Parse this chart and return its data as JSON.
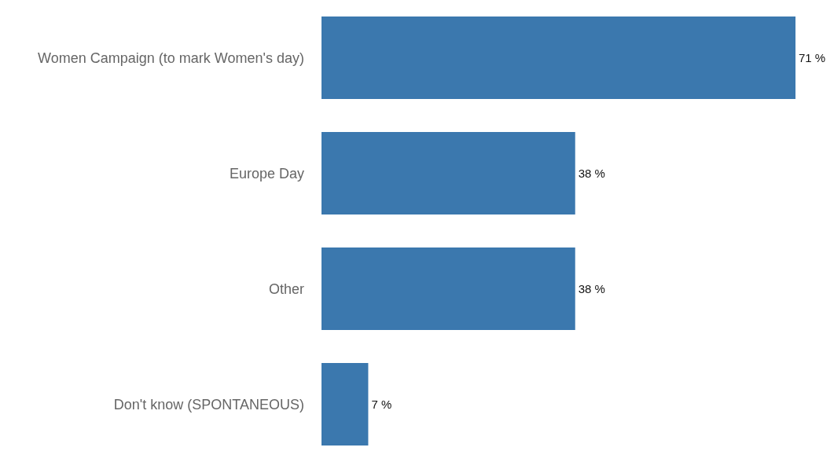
{
  "chart_data": {
    "type": "bar",
    "orientation": "horizontal",
    "categories": [
      "Women Campaign (to mark Women's day)",
      "Europe Day",
      "Other",
      "Don't know (SPONTANEOUS)"
    ],
    "values": [
      71,
      38,
      38,
      7
    ],
    "value_labels": [
      "71 %",
      "38 %",
      "38 %",
      "7 %"
    ],
    "color": "#3b78ae"
  }
}
